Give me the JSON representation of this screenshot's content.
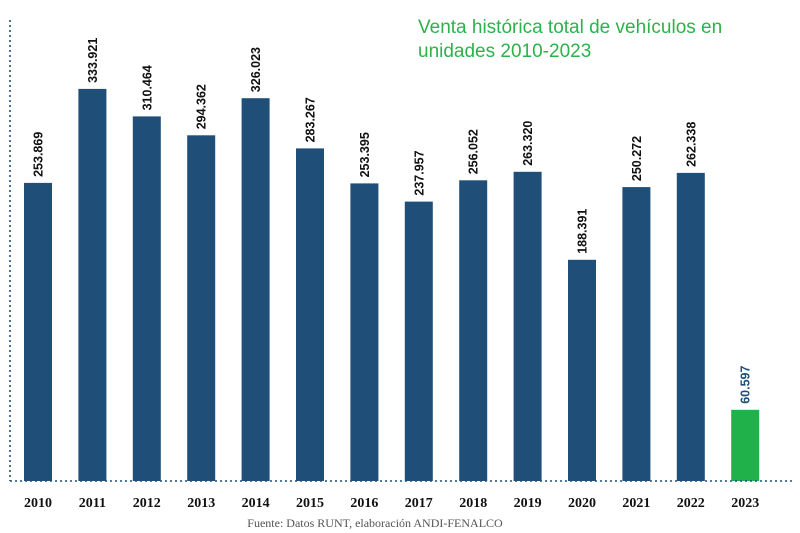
{
  "chart_data": {
    "type": "bar",
    "title_lines": [
      "Venta histórica total de  vehículos en",
      "unidades 2010-2023"
    ],
    "categories": [
      "2010",
      "2011",
      "2012",
      "2013",
      "2014",
      "2015",
      "2016",
      "2017",
      "2018",
      "2019",
      "2020",
      "2021",
      "2022",
      "2023"
    ],
    "values": [
      253869,
      333921,
      310464,
      294362,
      326023,
      283267,
      253395,
      237957,
      256052,
      263320,
      188391,
      250272,
      262338,
      60597
    ],
    "value_labels": [
      "253.869",
      "333.921",
      "310.464",
      "294.362",
      "326.023",
      "283.267",
      "253.395",
      "237.957",
      "256.052",
      "263.320",
      "188.391",
      "250.272",
      "262.338",
      "60.597"
    ],
    "bar_colors": [
      "#1f4e79",
      "#1f4e79",
      "#1f4e79",
      "#1f4e79",
      "#1f4e79",
      "#1f4e79",
      "#1f4e79",
      "#1f4e79",
      "#1f4e79",
      "#1f4e79",
      "#1f4e79",
      "#1f4e79",
      "#1f4e79",
      "#21b14b"
    ],
    "label_colors": [
      "#111111",
      "#111111",
      "#111111",
      "#111111",
      "#111111",
      "#111111",
      "#111111",
      "#111111",
      "#111111",
      "#111111",
      "#111111",
      "#111111",
      "#111111",
      "#1f4e79"
    ],
    "title_color": "#2db24a",
    "axis_color": "#1f4e79",
    "ylim": [
      0,
      350000
    ],
    "grid": false,
    "legend": "none",
    "source_note": "Fuente: Datos RUNT, elaboración ANDI-FENALCO"
  }
}
